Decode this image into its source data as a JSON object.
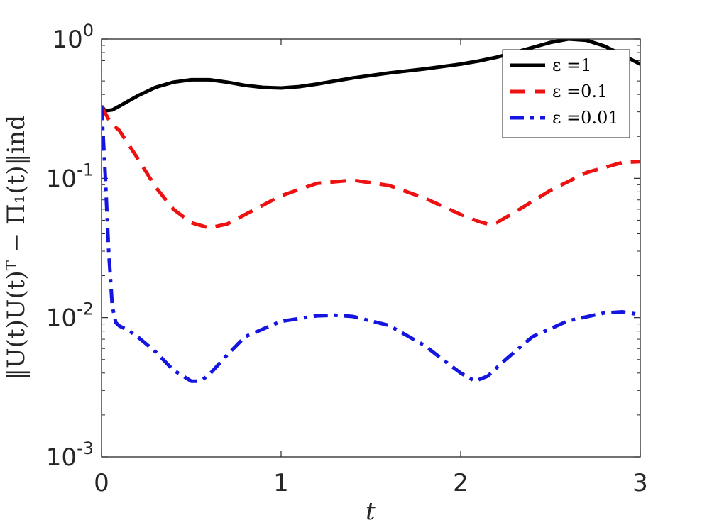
{
  "chart_data": {
    "type": "line",
    "xlabel": "t",
    "ylabel": "‖U(t)U(t)ᵀ − Π₁(t)‖ind",
    "xlim": [
      0,
      3
    ],
    "ylim": [
      0.001,
      1
    ],
    "yscale": "log",
    "grid": false,
    "legend_position": "top-right",
    "x_ticks": [
      "0",
      "1",
      "2",
      "3"
    ],
    "y_ticks": [
      {
        "value": 1,
        "base": "10",
        "exp": "0"
      },
      {
        "value": 0.1,
        "base": "10",
        "exp": "-1"
      },
      {
        "value": 0.01,
        "base": "10",
        "exp": "-2"
      },
      {
        "value": 0.001,
        "base": "10",
        "exp": "-3"
      }
    ],
    "series": [
      {
        "name": "ε =1",
        "color": "#000000",
        "dash": "solid",
        "x": [
          0,
          0.02,
          0.06,
          0.1,
          0.2,
          0.3,
          0.4,
          0.5,
          0.6,
          0.7,
          0.8,
          0.9,
          1.0,
          1.1,
          1.2,
          1.4,
          1.6,
          1.8,
          2.0,
          2.1,
          2.2,
          2.3,
          2.4,
          2.5,
          2.6,
          2.7,
          2.8,
          2.9,
          3.0
        ],
        "y": [
          0.33,
          0.305,
          0.31,
          0.33,
          0.39,
          0.45,
          0.49,
          0.51,
          0.51,
          0.49,
          0.465,
          0.45,
          0.445,
          0.455,
          0.475,
          0.525,
          0.57,
          0.61,
          0.66,
          0.695,
          0.74,
          0.8,
          0.87,
          0.945,
          1.0,
          0.98,
          0.89,
          0.77,
          0.66
        ]
      },
      {
        "name": "ε =0.1",
        "color": "#ee1111",
        "dash": "dashed",
        "x": [
          0,
          0.05,
          0.1,
          0.2,
          0.3,
          0.4,
          0.5,
          0.6,
          0.7,
          0.8,
          1.0,
          1.2,
          1.4,
          1.6,
          1.8,
          2.0,
          2.1,
          2.15,
          2.2,
          2.3,
          2.5,
          2.7,
          2.9,
          3.0
        ],
        "y": [
          0.33,
          0.25,
          0.22,
          0.14,
          0.087,
          0.06,
          0.048,
          0.044,
          0.047,
          0.055,
          0.075,
          0.092,
          0.097,
          0.089,
          0.072,
          0.055,
          0.049,
          0.047,
          0.048,
          0.057,
          0.082,
          0.11,
          0.13,
          0.132
        ]
      },
      {
        "name": "ε =0.01",
        "color": "#1515e0",
        "dash": "dashdot",
        "x": [
          0,
          0.02,
          0.04,
          0.06,
          0.08,
          0.1,
          0.15,
          0.2,
          0.3,
          0.4,
          0.5,
          0.55,
          0.6,
          0.7,
          0.8,
          1.0,
          1.2,
          1.3,
          1.4,
          1.6,
          1.8,
          1.9,
          2.0,
          2.08,
          2.15,
          2.25,
          2.4,
          2.6,
          2.8,
          2.9,
          3.0
        ],
        "y": [
          0.33,
          0.11,
          0.03,
          0.012,
          0.0092,
          0.0087,
          0.0081,
          0.0073,
          0.0057,
          0.0042,
          0.0035,
          0.0035,
          0.0039,
          0.0054,
          0.0073,
          0.0094,
          0.0103,
          0.0104,
          0.0102,
          0.0088,
          0.0063,
          0.005,
          0.004,
          0.0035,
          0.0038,
          0.005,
          0.0073,
          0.0095,
          0.0108,
          0.011,
          0.0105
        ]
      }
    ]
  }
}
